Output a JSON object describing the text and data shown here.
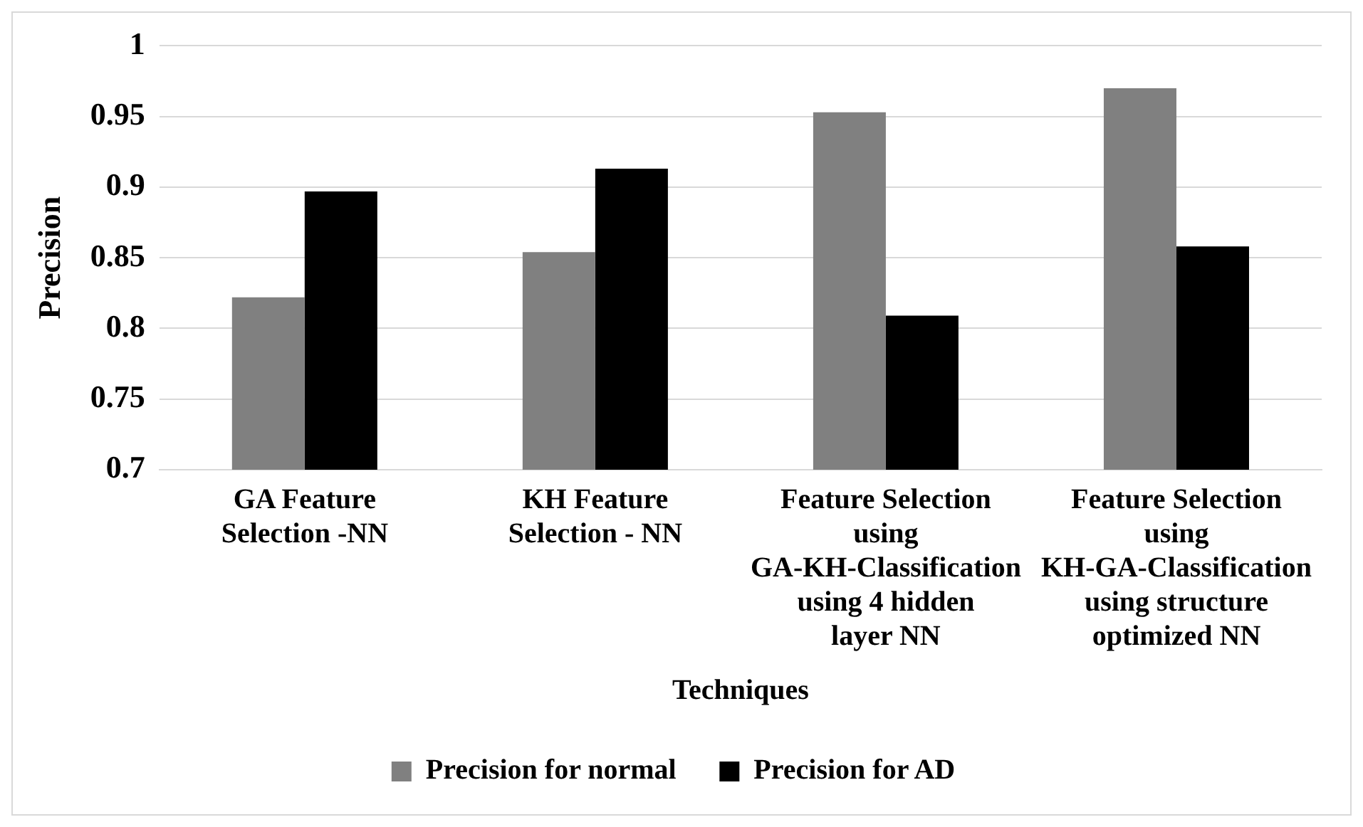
{
  "chart_data": {
    "type": "bar",
    "xlabel": "Techniques",
    "ylabel": "Precision",
    "categories": [
      "GA Feature Selection -NN",
      "KH Feature Selection - NN",
      "Feature Selection using GA-KH-Classification using 4 hidden layer NN",
      "Feature Selection using KH-GA-Classification using structure optimized NN"
    ],
    "series": [
      {
        "name": "Precision for normal",
        "color": "#808080",
        "values": [
          0.822,
          0.854,
          0.953,
          0.97
        ]
      },
      {
        "name": "Precision for AD",
        "color": "#000000",
        "values": [
          0.897,
          0.913,
          0.809,
          0.858
        ]
      }
    ],
    "ylim": [
      0.7,
      1
    ],
    "yticks": [
      0.7,
      0.75,
      0.8,
      0.85,
      0.9,
      0.95,
      1
    ],
    "grid": "y",
    "legend": "bottom"
  }
}
